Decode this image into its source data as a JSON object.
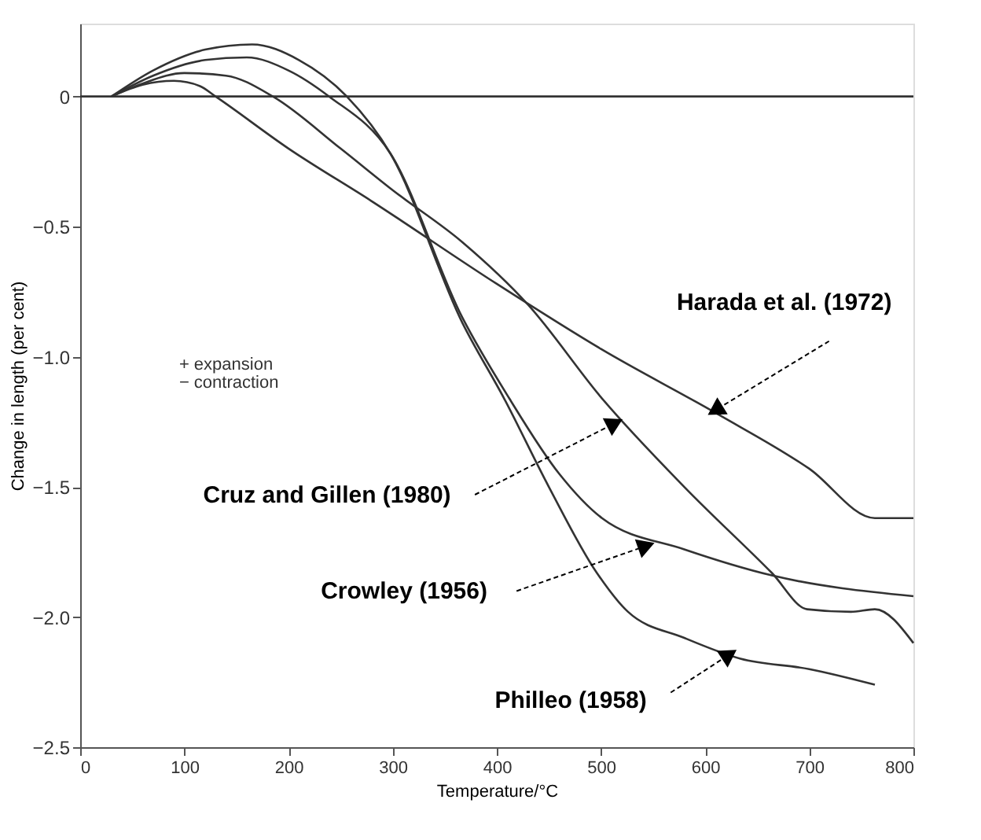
{
  "chart_data": {
    "type": "line",
    "xlabel": "Temperature/°C",
    "ylabel": "Change in length (per cent)",
    "xlim": [
      0,
      800
    ],
    "xticks": [
      0,
      100,
      200,
      300,
      400,
      500,
      600,
      700,
      800
    ],
    "ylim": [
      -2.5,
      0.28
    ],
    "yticks": [
      0,
      {
        "value": -0.5,
        "label": "−0.5"
      },
      {
        "value": -1.0,
        "label": "−1.0"
      },
      {
        "value": -1.5,
        "label": "−1.5"
      },
      {
        "value": -2.0,
        "label": "−2.0"
      },
      {
        "value": -2.5,
        "label": "−2.5"
      }
    ],
    "grid": false,
    "marker": "none",
    "line_style": "solid",
    "series": [
      {
        "color": "#333333",
        "x": [
          30,
          60,
          90,
          115,
          130,
          200,
          279,
          400,
          500,
          612,
          700,
          763,
          800
        ],
        "values": [
          0,
          0.045,
          0.06,
          0.04,
          0,
          -0.2,
          -0.4,
          -0.72,
          -0.97,
          -1.22,
          -1.43,
          -1.62,
          -1.62
        ]
      },
      {
        "color": "#333333",
        "x": [
          30,
          60,
          100,
          140,
          185,
          250,
          300,
          367,
          430,
          501,
          580,
          664,
          698,
          740,
          763,
          800
        ],
        "values": [
          0,
          0.05,
          0.09,
          0.08,
          0,
          -0.2,
          -0.36,
          -0.56,
          -0.8,
          -1.16,
          -1.5,
          -1.83,
          -1.97,
          -1.98,
          -1.97,
          -2.1
        ]
      },
      {
        "color": "#333333",
        "x": [
          30,
          70,
          120,
          160,
          200,
          239,
          298,
          367,
          412,
          460,
          501,
          580,
          664,
          800
        ],
        "values": [
          0,
          0.08,
          0.14,
          0.15,
          0.1,
          0,
          -0.22,
          -0.85,
          -1.16,
          -1.45,
          -1.62,
          -1.74,
          -1.84,
          -1.92
        ]
      },
      {
        "color": "#333333",
        "x": [
          30,
          70,
          120,
          165,
          210,
          256,
          298,
          367,
          407,
          450,
          496,
          526,
          580,
          634,
          700,
          763
        ],
        "values": [
          0,
          0.1,
          0.18,
          0.2,
          0.14,
          0,
          -0.22,
          -0.87,
          -1.16,
          -1.5,
          -1.83,
          -1.98,
          -2.08,
          -2.16,
          -2.2,
          -2.26
        ]
      }
    ],
    "ref_lines": [
      {
        "axis": "y",
        "value": 0,
        "color": "#333333"
      }
    ],
    "annotations": [
      {
        "text": "Harada et al. (1972)",
        "x": 612,
        "y": -1.2
      },
      {
        "text": "Cruz and Gillen (1980)",
        "x": 511,
        "y": -1.26
      },
      {
        "text": "Crowley (1956)",
        "x": 541,
        "y": -1.73
      },
      {
        "text": "Philleo (1958)",
        "x": 621,
        "y": -2.15
      },
      "+ expansion",
      "− contraction"
    ]
  }
}
